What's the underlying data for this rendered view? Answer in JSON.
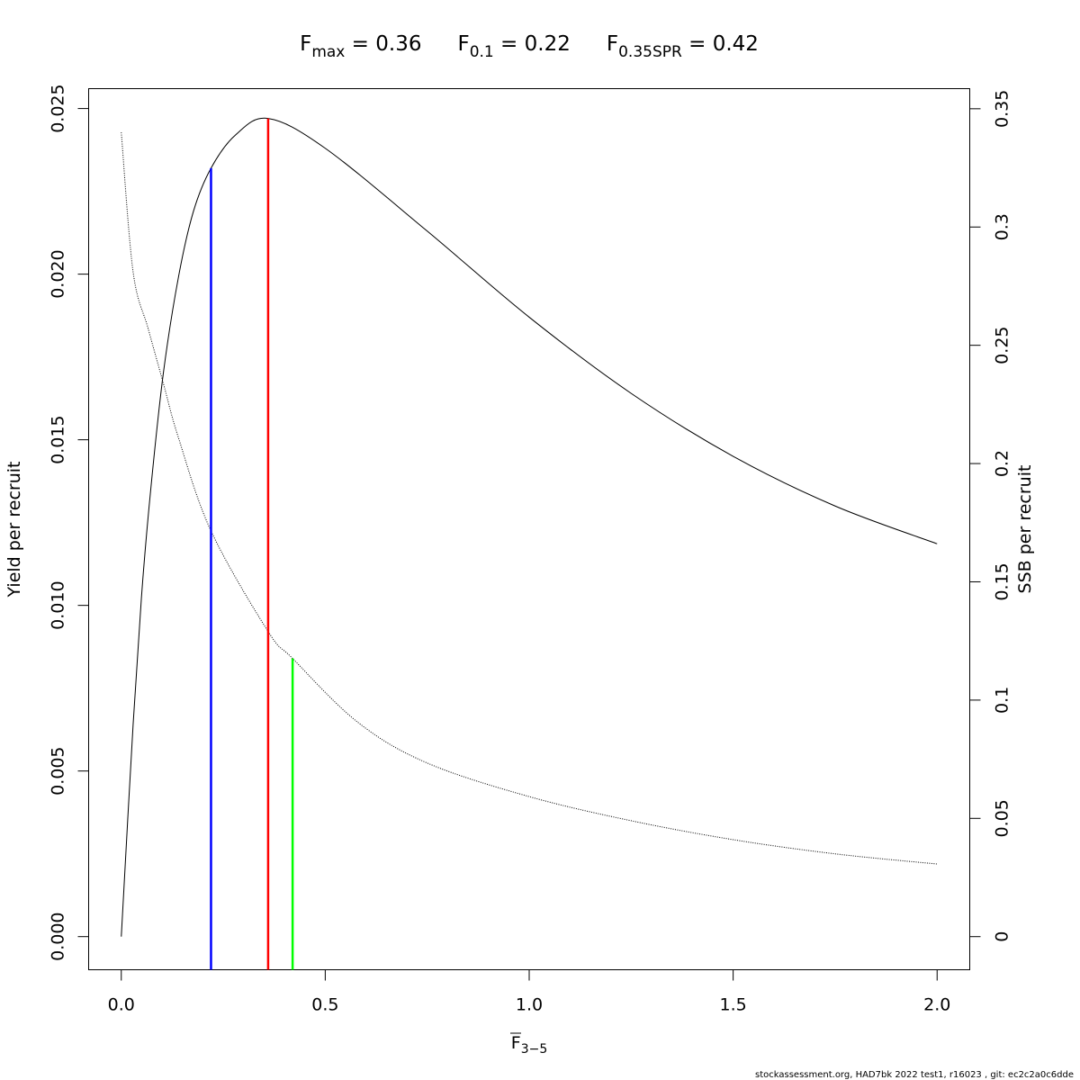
{
  "title": {
    "fmax_label": "F",
    "fmax_sub": "max",
    "fmax_value": " = 0.36",
    "f01_label": "F",
    "f01_sub": "0.1",
    "f01_value": " = 0.22",
    "fspr_label": "F",
    "fspr_sub": "0.35SPR",
    "fspr_value": " = 0.42"
  },
  "footer": "stockassessment.org, HAD7bk  2022  test1, r16023 , git: ec2c2a0c6dde",
  "chart_data": {
    "type": "line",
    "xlabel": "F",
    "xlabel_sub": "3−5",
    "xlabel_overline": true,
    "ylabel_left": "Yield per recruit",
    "ylabel_right": "SSB per recruit",
    "xlim": [
      -0.08,
      2.08
    ],
    "ylim_left": [
      -0.001,
      0.0256
    ],
    "ylim_right": [
      -0.014,
      0.3585
    ],
    "x_ticks": [
      0,
      0.5,
      1,
      1.5,
      2
    ],
    "x_tick_labels": [
      "0.0",
      "0.5",
      "1.0",
      "1.5",
      "2.0"
    ],
    "y_left_ticks": [
      0,
      0.005,
      0.01,
      0.015,
      0.02,
      0.025
    ],
    "y_left_tick_labels": [
      "0.000",
      "0.005",
      "0.010",
      "0.015",
      "0.020",
      "0.025"
    ],
    "y_right_ticks": [
      0,
      0.05,
      0.1,
      0.15,
      0.2,
      0.25,
      0.3,
      0.35
    ],
    "y_right_tick_labels": [
      "0",
      "0.05",
      "0.1",
      "0.15",
      "0.2",
      "0.25",
      "0.3",
      "0.35"
    ],
    "grid": false,
    "series": [
      {
        "axis": "left",
        "style": "solid",
        "color": "#000000",
        "x": [
          0,
          0.029,
          0.051,
          0.073,
          0.103,
          0.14,
          0.177,
          0.22,
          0.28,
          0.36,
          0.5,
          0.75,
          1.0,
          1.25,
          1.5,
          1.75,
          2.0
        ],
        "y": [
          0,
          0.0064,
          0.0105,
          0.0136,
          0.017,
          0.0199,
          0.0219,
          0.0232,
          0.0242,
          0.0247,
          0.0238,
          0.0213,
          0.0187,
          0.0164,
          0.0145,
          0.013,
          0.01186
        ]
      },
      {
        "axis": "right",
        "style": "dotted",
        "color": "#000000",
        "x": [
          0,
          0.029,
          0.066,
          0.103,
          0.14,
          0.22,
          0.36,
          0.42,
          0.58,
          0.75,
          1.0,
          1.25,
          1.5,
          1.75,
          2.0
        ],
        "y": [
          0.34,
          0.281,
          0.257,
          0.234,
          0.211,
          0.1715,
          0.129,
          0.1176,
          0.0906,
          0.0734,
          0.0592,
          0.049,
          0.041,
          0.035,
          0.0307
        ]
      }
    ],
    "reference_lines": [
      {
        "name": "F0.1",
        "x": 0.22,
        "axis": "left",
        "top": 0.0232,
        "color": "#0000ff"
      },
      {
        "name": "Fmax",
        "x": 0.36,
        "axis": "left",
        "top": 0.0247,
        "color": "#ff0000"
      },
      {
        "name": "F0.35SPR",
        "x": 0.42,
        "axis": "right",
        "top": 0.1176,
        "color": "#00ff00"
      }
    ]
  }
}
